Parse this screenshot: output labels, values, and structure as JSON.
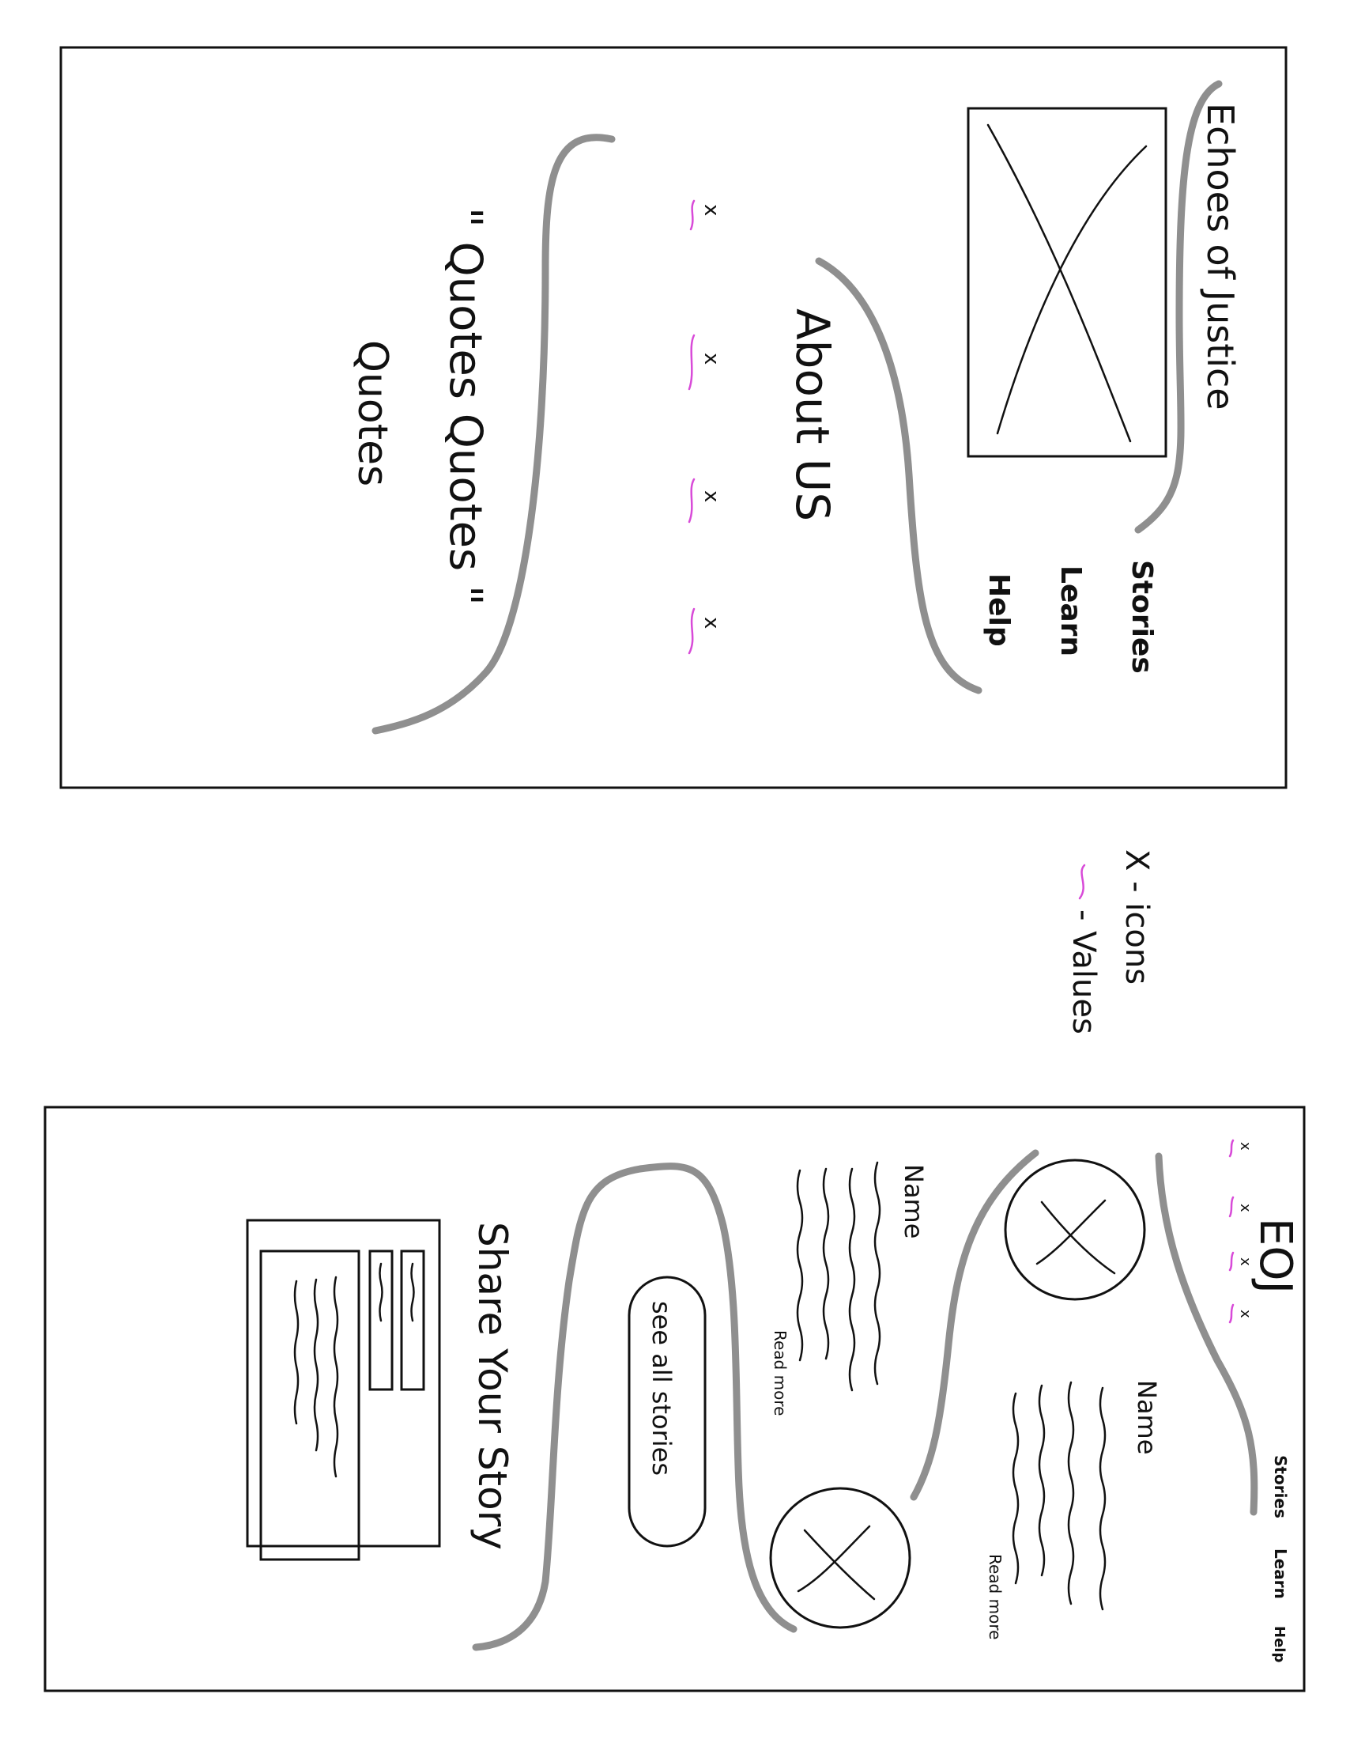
{
  "colors": {
    "ink": "#111111",
    "decorative_curve": "#8f8f8f",
    "values_marker": "#d84ad8"
  },
  "landing_page": {
    "site_title": "Echoes of Justice",
    "hero_image_icon": "image-placeholder-x",
    "nav_items": [
      "Stories",
      "Learn",
      "Help"
    ],
    "section_title": "About US",
    "values": [
      {
        "icon": "x",
        "marker": "values-marker"
      },
      {
        "icon": "x",
        "marker": "values-marker"
      },
      {
        "icon": "x",
        "marker": "values-marker"
      },
      {
        "icon": "x",
        "marker": "values-marker"
      }
    ],
    "quote_line_1": "\" Quotes Quotes \"",
    "quote_line_2": "Quotes"
  },
  "legend": {
    "icons_label": "X - icons",
    "values_label": "- Values"
  },
  "stories_page": {
    "logo": "EOJ",
    "nav_items": [
      "Stories",
      "Learn",
      "Help"
    ],
    "values_icons": [
      "x",
      "x",
      "x",
      "x"
    ],
    "stories": [
      {
        "name": "Name",
        "read_more": "Read more"
      },
      {
        "name": "Name",
        "read_more": "Read more"
      }
    ],
    "see_all_button": "see all stories",
    "share_heading": "Share Your Story"
  }
}
